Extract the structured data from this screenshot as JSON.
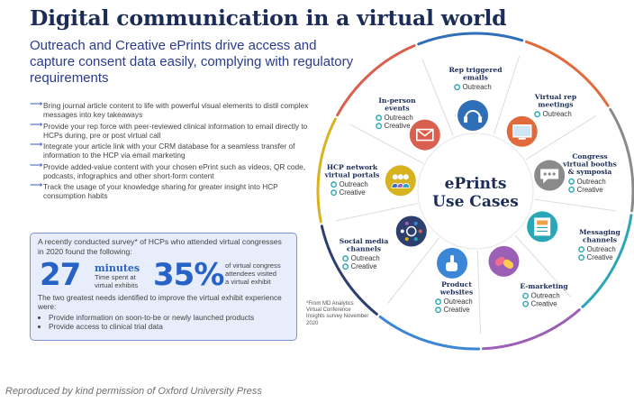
{
  "title": "Digital communication in a virtual world",
  "subtitle": "Outreach and Creative ePrints drive access and capture consent data easily, complying with regulatory requirements",
  "bullets": [
    "Bring journal article content to life with powerful visual elements to distil complex messages into key takeaways",
    "Provide your rep force with peer-reviewed clinical information to email directly to HCPs during, pre or post virtual call",
    "Integrate your article link with your CRM database for a seamless transfer of information to the HCP via email marketing",
    "Provide added-value content with your chosen ePrint such as videos, QR code, podcasts, infographics and other short-form content",
    "Track the usage of your knowledge sharing for greater insight into HCP consumption habits"
  ],
  "survey": {
    "intro": "A recently conducted survey* of HCPs who attended virtual congresses in 2020 found the following:",
    "stat1_number": "27",
    "stat1_unit": "minutes",
    "stat1_desc_line1": "Time spent at",
    "stat1_desc_line2": "virtual exhibits",
    "stat2_number": "35%",
    "stat2_desc_line1": "of virtual congress",
    "stat2_desc_line2": "attendees visited",
    "stat2_desc_line3": "a virtual exhibit",
    "needs_intro": "The two greatest needs identified to improve the virtual exhibit experience were:",
    "needs": [
      "Provide information on soon-to-be or newly launched products",
      "Provide access to clinical trial data"
    ]
  },
  "footnote": "*From MD Analytics Virtual Conference Insights survey November 2020",
  "wheel": {
    "center_line1": "ePrints",
    "center_line2": "Use Cases",
    "segments": [
      {
        "title": [
          "Rep triggered",
          "emails"
        ],
        "options": [
          "Outreach"
        ],
        "icon": "email-icon",
        "color": "#d95f4e"
      },
      {
        "title": [
          "Virtual rep",
          "meetings"
        ],
        "options": [
          "Outreach"
        ],
        "icon": "headset-icon",
        "color": "#2f6fb7"
      },
      {
        "title": [
          "Congress",
          "virtual booths",
          "& symposia"
        ],
        "options": [
          "Outreach",
          "Creative"
        ],
        "icon": "monitor-icon",
        "color": "#e06a3c"
      },
      {
        "title": [
          "Messaging",
          "channels"
        ],
        "options": [
          "Outreach",
          "Creative"
        ],
        "icon": "chat-bubble-icon",
        "color": "#8a8a8a"
      },
      {
        "title": [
          "E-marketing"
        ],
        "options": [
          "Outreach",
          "Creative"
        ],
        "icon": "newsletter-icon",
        "color": "#2aa6b6"
      },
      {
        "title": [
          "Product",
          "websites"
        ],
        "options": [
          "Outreach",
          "Creative"
        ],
        "icon": "pills-icon",
        "color": "#9b5fb5"
      },
      {
        "title": [
          "Social media",
          "channels"
        ],
        "options": [
          "Outreach",
          "Creative"
        ],
        "icon": "tap-hand-icon",
        "color": "#3b86d6"
      },
      {
        "title": [
          "HCP network",
          "virtual portals"
        ],
        "options": [
          "Outreach",
          "Creative"
        ],
        "icon": "network-icon",
        "color": "#2d3f6e"
      },
      {
        "title": [
          "In-person",
          "events"
        ],
        "options": [
          "Outreach",
          "Creative"
        ],
        "icon": "people-icon",
        "color": "#d8b320"
      }
    ],
    "arc_colors": [
      "#d95f4e",
      "#2f6fb7",
      "#e06a3c",
      "#8a8a8a",
      "#2aa6b6",
      "#9b5fb5",
      "#3b86d6",
      "#2d3f6e",
      "#d8b320"
    ],
    "dot_color": "#2aa6b6"
  },
  "credit": "Reproduced by kind permission of Oxford University Press"
}
